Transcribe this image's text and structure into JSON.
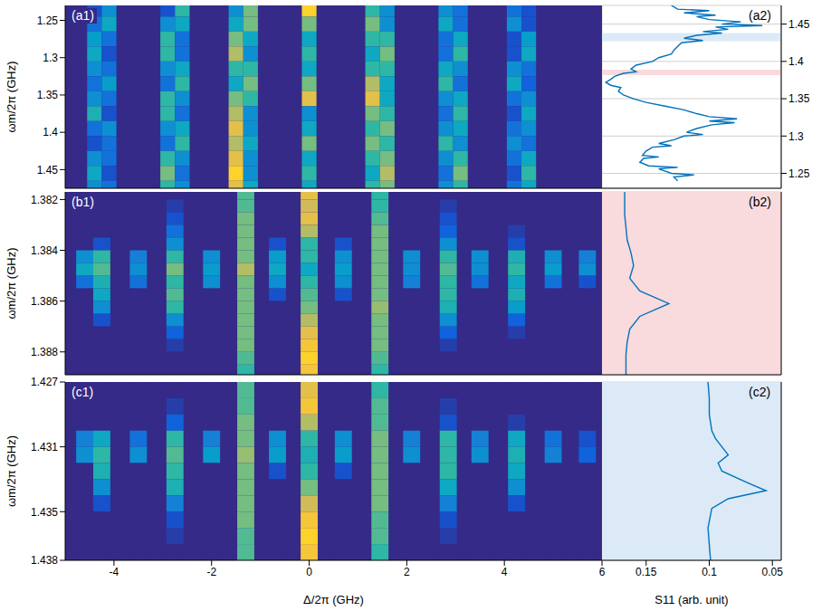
{
  "chart_data": [
    {
      "type": "heatmap",
      "title": "(a1)",
      "ylabel": "ωm/2π (GHz)",
      "xlim": [
        -5,
        6
      ],
      "xticks": [
        -4,
        -2,
        0,
        2,
        4,
        6
      ],
      "ylim": [
        1.23,
        1.475
      ],
      "yticks": [
        1.25,
        1.3,
        1.35,
        1.4,
        1.45
      ],
      "tick_labels": "y",
      "zlim": [
        0,
        1
      ],
      "cell_size": [
        0.3,
        0.02
      ],
      "x": [
        -4.4,
        -4.1,
        -2.9,
        -2.6,
        -1.5,
        -1.2,
        0,
        1.3,
        1.6,
        2.8,
        3.1,
        4.2,
        4.5
      ],
      "y": [
        1.235,
        1.255,
        1.275,
        1.295,
        1.315,
        1.335,
        1.355,
        1.375,
        1.395,
        1.415,
        1.435,
        1.455,
        1.475
      ],
      "z": [
        [
          0.1,
          0.3,
          0.1,
          0.5,
          0.3,
          0.6,
          0.9,
          0.5,
          0.3,
          0.3,
          0.2,
          0.2,
          0.1
        ],
        [
          0.2,
          0.4,
          0.3,
          0.4,
          0.4,
          0.6,
          0.6,
          0.6,
          0.3,
          0.4,
          0.2,
          0.3,
          0.1
        ],
        [
          0.35,
          0.2,
          0.5,
          0.2,
          0.6,
          0.4,
          0.4,
          0.5,
          0.5,
          0.2,
          0.4,
          0.1,
          0.35
        ],
        [
          0.4,
          0.1,
          0.5,
          0.2,
          0.7,
          0.3,
          0.5,
          0.4,
          0.6,
          0.2,
          0.5,
          0.1,
          0.4
        ],
        [
          0.3,
          0.2,
          0.3,
          0.4,
          0.5,
          0.5,
          0.4,
          0.5,
          0.5,
          0.4,
          0.3,
          0.3,
          0.2
        ],
        [
          0.2,
          0.35,
          0.2,
          0.5,
          0.4,
          0.6,
          0.6,
          0.7,
          0.4,
          0.5,
          0.2,
          0.4,
          0.15
        ],
        [
          0.3,
          0.2,
          0.5,
          0.3,
          0.6,
          0.5,
          0.8,
          0.8,
          0.4,
          0.3,
          0.4,
          0.2,
          0.3
        ],
        [
          0.45,
          0.1,
          0.5,
          0.2,
          0.7,
          0.3,
          0.3,
          0.6,
          0.5,
          0.2,
          0.5,
          0.1,
          0.4
        ],
        [
          0.2,
          0.3,
          0.3,
          0.4,
          0.8,
          0.3,
          0.4,
          0.5,
          0.6,
          0.3,
          0.4,
          0.2,
          0.3
        ],
        [
          0.1,
          0.2,
          0.2,
          0.5,
          0.7,
          0.4,
          0.6,
          0.6,
          0.5,
          0.5,
          0.3,
          0.3,
          0.2
        ],
        [
          0.3,
          0.2,
          0.5,
          0.3,
          0.8,
          0.3,
          0.4,
          0.5,
          0.6,
          0.3,
          0.5,
          0.2,
          0.4
        ],
        [
          0.4,
          0.1,
          0.6,
          0.2,
          0.9,
          0.3,
          0.5,
          0.4,
          0.7,
          0.2,
          0.6,
          0.1,
          0.5
        ],
        [
          0.3,
          0.2,
          0.5,
          0.3,
          0.8,
          0.4,
          0.4,
          0.5,
          0.6,
          0.3,
          0.5,
          0.2,
          0.4
        ]
      ]
    },
    {
      "type": "heatmap",
      "title": "(b1)",
      "ylabel": "ωm/2π (GHz)",
      "xlim": [
        -5,
        6
      ],
      "xticks": [
        -4,
        -2,
        0,
        2,
        4,
        6
      ],
      "ylim": [
        1.3817,
        1.3889
      ],
      "yticks": [
        1.382,
        1.384,
        1.386,
        1.388
      ],
      "tick_labels": "y",
      "zlim": [
        0,
        1
      ],
      "cell_size": [
        0.35,
        0.0005
      ],
      "x": [
        -4.6,
        -4.25,
        -3.5,
        -2.75,
        -2.0,
        -1.3,
        -0.65,
        0,
        0.7,
        1.45,
        2.1,
        2.85,
        3.5,
        4.25,
        5.0,
        5.7
      ],
      "y": [
        1.38175,
        1.38225,
        1.38275,
        1.38325,
        1.38375,
        1.38425,
        1.38475,
        1.38525,
        1.38575,
        1.38625,
        1.38675,
        1.38725,
        1.38775,
        1.38825,
        1.38875
      ],
      "z": [
        [
          0,
          0,
          0,
          0,
          0,
          0.55,
          0,
          0.8,
          0,
          0.5,
          0,
          0,
          0,
          0,
          0,
          0
        ],
        [
          0,
          0,
          0,
          0.05,
          0,
          0.55,
          0,
          0.75,
          0,
          0.5,
          0,
          0.05,
          0,
          0,
          0,
          0
        ],
        [
          0,
          0,
          0,
          0.1,
          0,
          0.6,
          0,
          0.8,
          0,
          0.55,
          0,
          0.1,
          0,
          0,
          0,
          0
        ],
        [
          0,
          0,
          0,
          0.2,
          0,
          0.6,
          0,
          0.7,
          0,
          0.6,
          0,
          0.15,
          0,
          0.05,
          0,
          0
        ],
        [
          0,
          0.1,
          0,
          0.3,
          0,
          0.6,
          0.1,
          0.5,
          0.1,
          0.6,
          0,
          0.3,
          0,
          0.1,
          0,
          0
        ],
        [
          0.3,
          0.5,
          0.25,
          0.5,
          0.3,
          0.6,
          0.35,
          0.5,
          0.3,
          0.6,
          0.3,
          0.5,
          0.3,
          0.45,
          0.3,
          0.25
        ],
        [
          0.4,
          0.55,
          0.3,
          0.6,
          0.35,
          0.7,
          0.4,
          0.4,
          0.35,
          0.6,
          0.3,
          0.55,
          0.3,
          0.5,
          0.35,
          0.3
        ],
        [
          0.2,
          0.45,
          0.2,
          0.5,
          0.3,
          0.6,
          0.3,
          0.5,
          0.3,
          0.6,
          0.25,
          0.5,
          0.2,
          0.4,
          0.2,
          0.1
        ],
        [
          0,
          0.4,
          0,
          0.55,
          0,
          0.6,
          0.1,
          0.55,
          0.1,
          0.6,
          0,
          0.5,
          0,
          0.45,
          0,
          0
        ],
        [
          0,
          0.3,
          0,
          0.5,
          0,
          0.6,
          0,
          0.6,
          0,
          0.65,
          0,
          0.45,
          0,
          0.35,
          0,
          0
        ],
        [
          0,
          0.1,
          0,
          0.3,
          0,
          0.6,
          0,
          0.7,
          0,
          0.6,
          0,
          0.3,
          0,
          0.15,
          0,
          0
        ],
        [
          0,
          0,
          0,
          0.15,
          0,
          0.6,
          0,
          0.8,
          0,
          0.6,
          0,
          0.15,
          0,
          0.05,
          0,
          0
        ],
        [
          0,
          0,
          0,
          0.05,
          0,
          0.6,
          0,
          0.85,
          0,
          0.6,
          0,
          0.05,
          0,
          0,
          0,
          0
        ],
        [
          0,
          0,
          0,
          0,
          0,
          0.55,
          0,
          0.9,
          0,
          0.55,
          0,
          0,
          0,
          0,
          0,
          0
        ],
        [
          0,
          0,
          0,
          0,
          0,
          0.5,
          0,
          0.85,
          0,
          0.5,
          0,
          0,
          0,
          0,
          0,
          0
        ]
      ]
    },
    {
      "type": "heatmap",
      "title": "(c1)",
      "ylabel": "ωm/2π (GHz)",
      "xlabel": "Δ/2π (GHz)",
      "xlim": [
        -5,
        6
      ],
      "xticks": [
        -4,
        -2,
        0,
        2,
        4,
        6
      ],
      "ylim": [
        1.427,
        1.438
      ],
      "yticks": [
        1.427,
        1.431,
        1.435,
        1.438
      ],
      "tick_labels": true,
      "zlim": [
        0,
        1
      ],
      "cell_size": [
        0.35,
        0.001
      ],
      "x": [
        -4.6,
        -4.25,
        -3.5,
        -2.75,
        -2.0,
        -1.3,
        -0.65,
        0,
        0.7,
        1.45,
        2.1,
        2.85,
        3.5,
        4.25,
        5.0,
        5.7
      ],
      "y": [
        1.4275,
        1.4285,
        1.4295,
        1.4305,
        1.4315,
        1.4325,
        1.4335,
        1.4345,
        1.4355,
        1.4365,
        1.4375
      ],
      "z": [
        [
          0,
          0,
          0,
          0,
          0,
          0.55,
          0,
          0.8,
          0,
          0.5,
          0,
          0,
          0,
          0,
          0,
          0
        ],
        [
          0,
          0,
          0,
          0.05,
          0,
          0.55,
          0,
          0.85,
          0,
          0.55,
          0,
          0.05,
          0,
          0,
          0,
          0
        ],
        [
          0,
          0,
          0,
          0.15,
          0,
          0.6,
          0,
          0.7,
          0,
          0.55,
          0,
          0.1,
          0,
          0.05,
          0,
          0
        ],
        [
          0.25,
          0.4,
          0.2,
          0.5,
          0.25,
          0.6,
          0.3,
          0.5,
          0.3,
          0.6,
          0.25,
          0.5,
          0.25,
          0.4,
          0.2,
          0.1
        ],
        [
          0.3,
          0.5,
          0.3,
          0.55,
          0.35,
          0.65,
          0.35,
          0.45,
          0.35,
          0.6,
          0.3,
          0.5,
          0.3,
          0.45,
          0.25,
          0.15
        ],
        [
          0,
          0.45,
          0,
          0.5,
          0,
          0.6,
          0.1,
          0.5,
          0.1,
          0.6,
          0,
          0.5,
          0,
          0.4,
          0,
          0
        ],
        [
          0,
          0.3,
          0,
          0.45,
          0,
          0.6,
          0,
          0.6,
          0,
          0.6,
          0,
          0.4,
          0,
          0.3,
          0,
          0
        ],
        [
          0,
          0.1,
          0,
          0.25,
          0,
          0.6,
          0,
          0.75,
          0,
          0.6,
          0,
          0.25,
          0,
          0.1,
          0,
          0
        ],
        [
          0,
          0,
          0,
          0.1,
          0,
          0.6,
          0,
          0.85,
          0,
          0.55,
          0,
          0.1,
          0,
          0,
          0,
          0
        ],
        [
          0,
          0,
          0,
          0.05,
          0,
          0.55,
          0,
          0.9,
          0,
          0.55,
          0,
          0.05,
          0,
          0,
          0,
          0
        ],
        [
          0,
          0,
          0,
          0,
          0,
          0.55,
          0,
          0.85,
          0,
          0.5,
          0,
          0,
          0,
          0,
          0,
          0
        ]
      ]
    },
    {
      "type": "line",
      "title": "(a2)",
      "color": "#0072bd",
      "grid": true,
      "tick_labels": "y",
      "xlim": [
        0.185,
        0.043
      ],
      "xticks": [
        0.15,
        0.1,
        0.05
      ],
      "ylim": [
        1.23,
        1.475
      ],
      "yticks": [
        1.25,
        1.3,
        1.35,
        1.4,
        1.45
      ],
      "highlights": [
        {
          "range": [
            1.3817,
            1.3889
          ],
          "color": "#f9dadd"
        },
        {
          "range": [
            1.427,
            1.438
          ],
          "color": "#dbeaf6"
        }
      ],
      "y": [
        1.24,
        1.245,
        1.248,
        1.25,
        1.256,
        1.258,
        1.26,
        1.265,
        1.27,
        1.272,
        1.274,
        1.28,
        1.285,
        1.287,
        1.29,
        1.295,
        1.3,
        1.302,
        1.305,
        1.31,
        1.315,
        1.318,
        1.32,
        1.323,
        1.326,
        1.33,
        1.335,
        1.34,
        1.345,
        1.35,
        1.355,
        1.36,
        1.365,
        1.368,
        1.372,
        1.376,
        1.38,
        1.384,
        1.386,
        1.39,
        1.395,
        1.4,
        1.405,
        1.41,
        1.415,
        1.42,
        1.425,
        1.428,
        1.431,
        1.435,
        1.438,
        1.44,
        1.443,
        1.446,
        1.448,
        1.45,
        1.453,
        1.456,
        1.46,
        1.462,
        1.465,
        1.468,
        1.47,
        1.475
      ],
      "x": [
        0.125,
        0.128,
        0.112,
        0.13,
        0.14,
        0.125,
        0.148,
        0.155,
        0.152,
        0.14,
        0.153,
        0.15,
        0.145,
        0.13,
        0.14,
        0.128,
        0.12,
        0.105,
        0.118,
        0.11,
        0.098,
        0.08,
        0.1,
        0.078,
        0.1,
        0.11,
        0.12,
        0.135,
        0.15,
        0.16,
        0.168,
        0.172,
        0.17,
        0.178,
        0.182,
        0.178,
        0.175,
        0.168,
        0.158,
        0.162,
        0.158,
        0.145,
        0.14,
        0.13,
        0.128,
        0.125,
        0.122,
        0.105,
        0.12,
        0.11,
        0.09,
        0.105,
        0.085,
        0.095,
        0.058,
        0.09,
        0.075,
        0.1,
        0.11,
        0.095,
        0.12,
        0.1,
        0.125,
        0.13
      ]
    },
    {
      "type": "line",
      "title": "(b2)",
      "color": "#0072bd",
      "grid": true,
      "tick_labels": false,
      "xlim": [
        0.185,
        0.043
      ],
      "xticks": [
        0.15,
        0.1,
        0.05
      ],
      "ylim": [
        1.3817,
        1.3889
      ],
      "yticks": [
        1.382,
        1.384,
        1.386,
        1.388
      ],
      "highlights": [
        {
          "range": [
            1.3817,
            1.3889
          ],
          "color": "#f9dadd"
        }
      ],
      "y": [
        1.3817,
        1.3825,
        1.383,
        1.3835,
        1.384,
        1.3845,
        1.385,
        1.3855,
        1.386,
        1.3865,
        1.387,
        1.388,
        1.3889
      ],
      "x": [
        0.166,
        0.166,
        0.165,
        0.163,
        0.155,
        0.132,
        0.155,
        0.163,
        0.16,
        0.162,
        0.165,
        0.167,
        0.167
      ]
    },
    {
      "type": "line",
      "title": "(c2)",
      "xlabel": "S11 (arb. unit)",
      "color": "#0072bd",
      "grid": true,
      "tick_labels": "x",
      "xlim": [
        0.185,
        0.043
      ],
      "xticks": [
        0.15,
        0.1,
        0.05
      ],
      "ylim": [
        1.427,
        1.438
      ],
      "yticks": [
        1.427,
        1.431,
        1.435,
        1.438
      ],
      "highlights": [
        {
          "range": [
            1.427,
            1.438
          ],
          "color": "#dbeaf6"
        }
      ],
      "y": [
        1.427,
        1.428,
        1.429,
        1.4302,
        1.4308,
        1.4313,
        1.4318,
        1.4325,
        1.433,
        1.4335,
        1.434,
        1.4345,
        1.435,
        1.436,
        1.437,
        1.438
      ],
      "x": [
        0.099,
        0.1,
        0.101,
        0.098,
        0.085,
        0.055,
        0.07,
        0.09,
        0.093,
        0.085,
        0.09,
        0.095,
        0.098,
        0.1,
        0.1,
        0.101
      ]
    }
  ]
}
